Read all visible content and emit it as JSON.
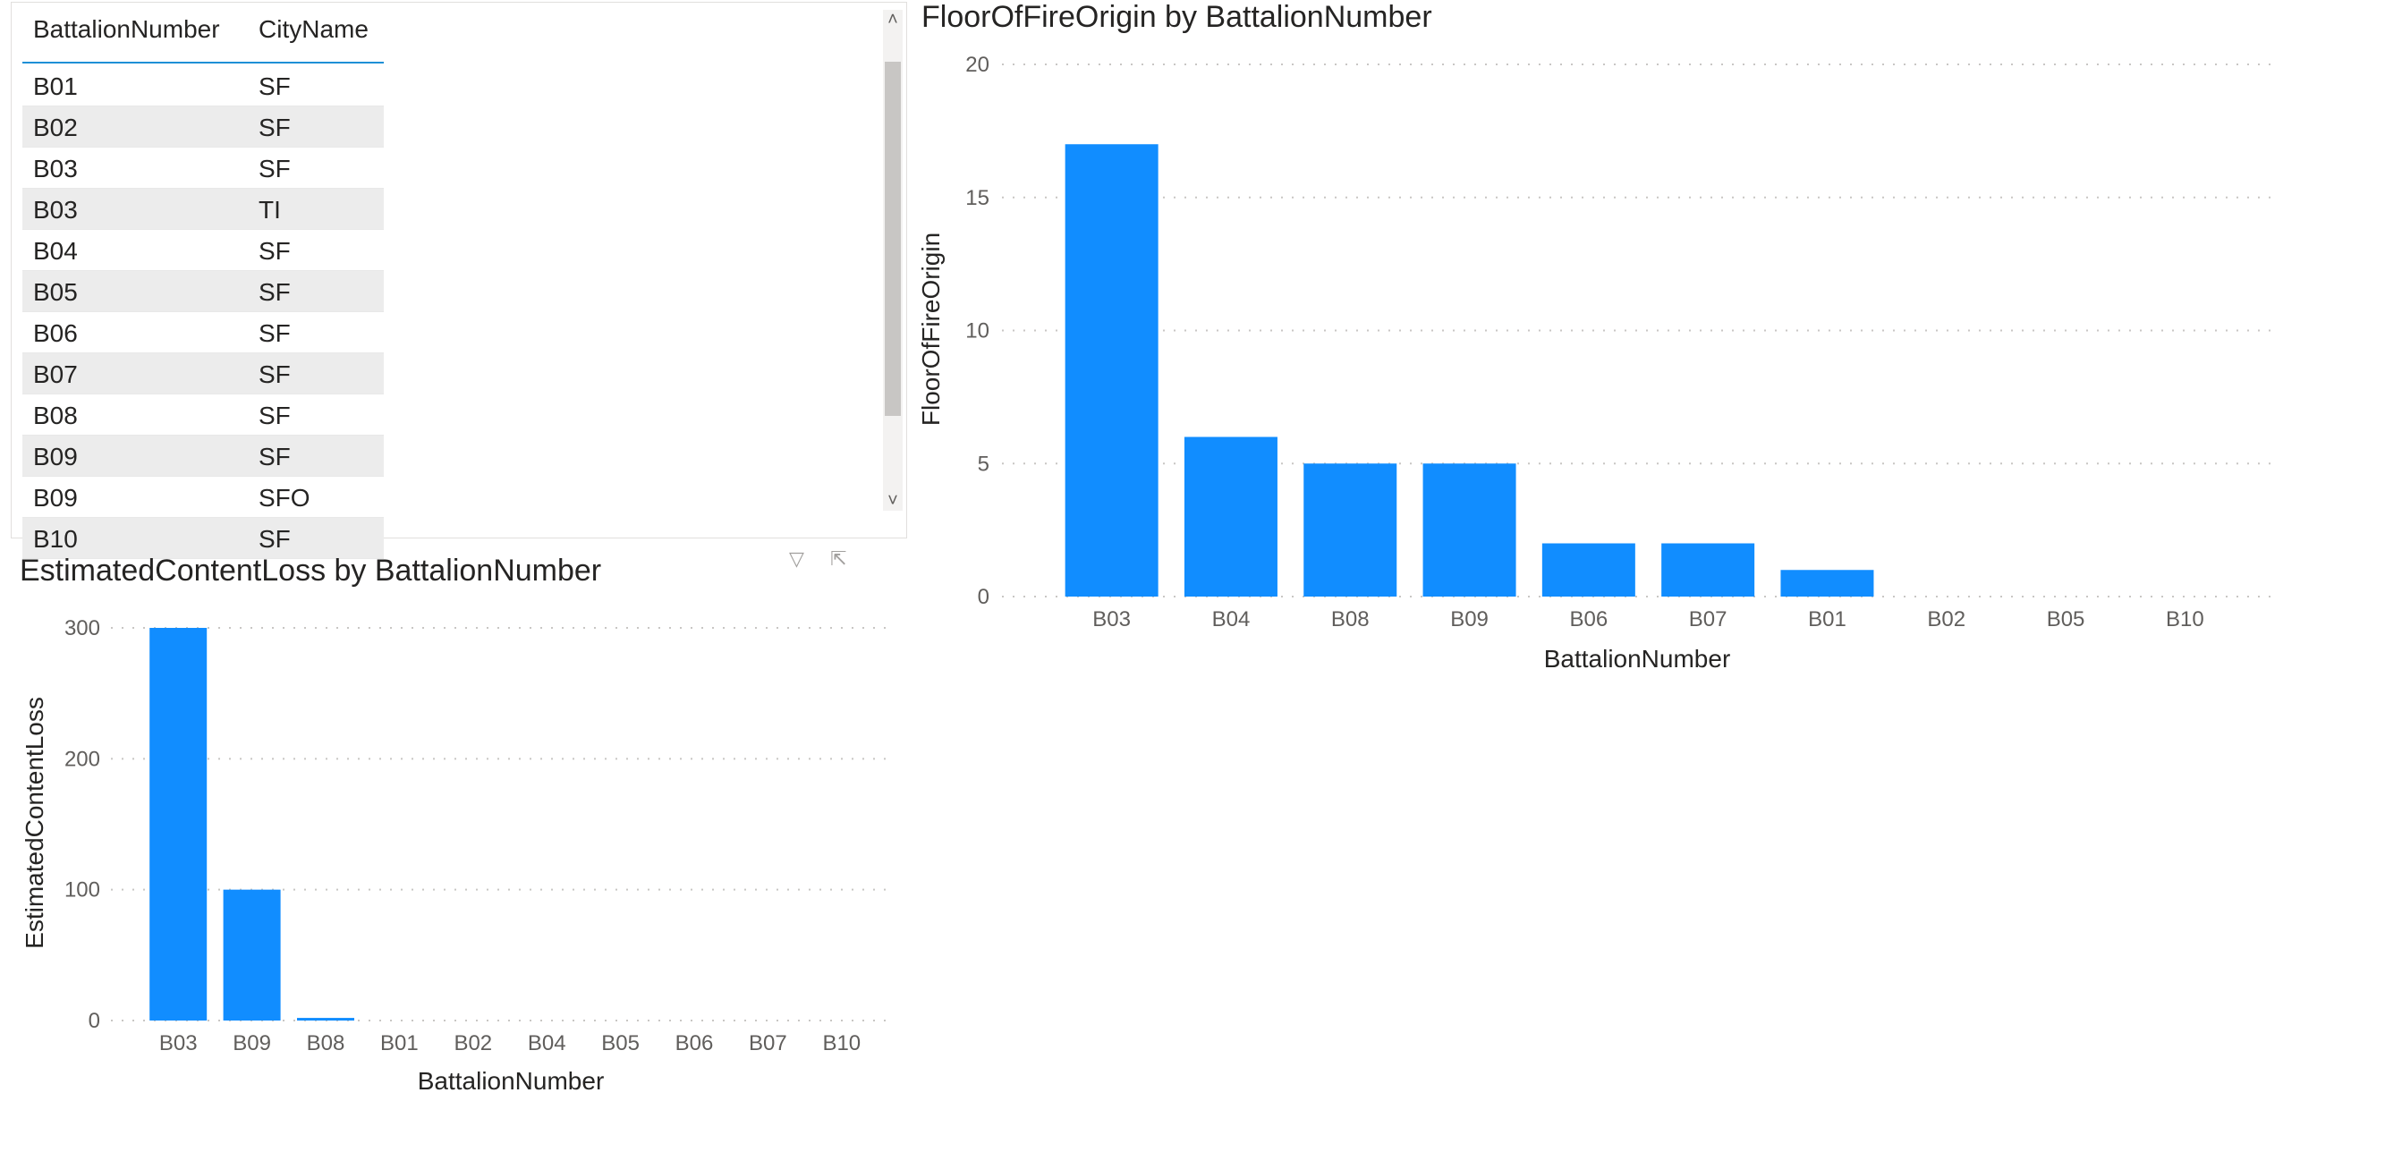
{
  "table": {
    "columns": [
      "BattalionNumber",
      "CityName"
    ],
    "rows": [
      [
        "B01",
        "SF"
      ],
      [
        "B02",
        "SF"
      ],
      [
        "B03",
        "SF"
      ],
      [
        "B03",
        "TI"
      ],
      [
        "B04",
        "SF"
      ],
      [
        "B05",
        "SF"
      ],
      [
        "B06",
        "SF"
      ],
      [
        "B07",
        "SF"
      ],
      [
        "B08",
        "SF"
      ],
      [
        "B09",
        "SF"
      ],
      [
        "B09",
        "SFO"
      ],
      [
        "B10",
        "SF"
      ]
    ],
    "scroll_up_icon": "chevron-up-icon",
    "scroll_down_icon": "chevron-down-icon"
  },
  "header_icons": [
    "filter-icon",
    "focus-mode-icon"
  ],
  "colors": {
    "bar": "#118dff",
    "grid": "#c8c6c4",
    "text": "#252423",
    "axis_text": "#605e5c"
  },
  "chart_data": [
    {
      "type": "bar",
      "title": "FloorOfFireOrigin by BattalionNumber",
      "xlabel": "BattalionNumber",
      "ylabel": "FloorOfFireOrigin",
      "categories": [
        "B03",
        "B04",
        "B08",
        "B09",
        "B06",
        "B07",
        "B01",
        "B02",
        "B05",
        "B10"
      ],
      "values": [
        17,
        6,
        5,
        5,
        2,
        2,
        1,
        0,
        0,
        0
      ],
      "ylim": [
        0,
        20
      ],
      "yticks": [
        0,
        5,
        10,
        15,
        20
      ],
      "grid": true
    },
    {
      "type": "bar",
      "title": "EstimatedContentLoss by BattalionNumber",
      "xlabel": "BattalionNumber",
      "ylabel": "EstimatedContentLoss",
      "categories": [
        "B03",
        "B09",
        "B08",
        "B01",
        "B02",
        "B04",
        "B05",
        "B06",
        "B07",
        "B10"
      ],
      "values": [
        300,
        100,
        2,
        0,
        0,
        0,
        0,
        0,
        0,
        0
      ],
      "ylim": [
        0,
        300
      ],
      "yticks": [
        0,
        100,
        200,
        300
      ],
      "grid": true
    }
  ]
}
